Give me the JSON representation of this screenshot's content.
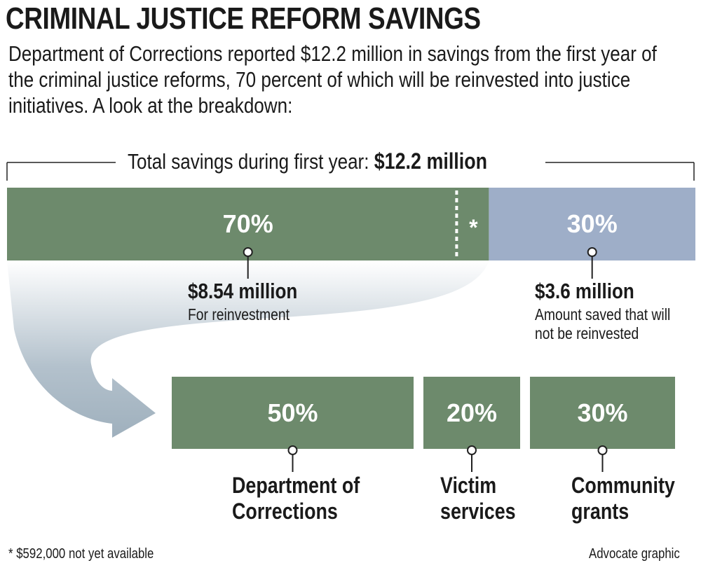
{
  "title": "CRIMINAL JUSTICE REFORM SAVINGS",
  "intro": "Department of Corrections reported $12.2 million in savings from the first year of the criminal justice reforms, 70 percent of which will be reinvested into justice initiatives. A look at the breakdown:",
  "total": {
    "label": "Total savings during first year:",
    "amount": "$12.2 million"
  },
  "split": [
    {
      "share": {
        "value": 70,
        "label": "70%"
      },
      "amount": "$8.54 million",
      "note": "For reinvestment",
      "color": "#6d8a6c"
    },
    {
      "share": {
        "value": 30,
        "label": "30%"
      },
      "amount": "$3.6 million",
      "note": "Amount saved that will not be reinvested",
      "color": "#9eaec8"
    }
  ],
  "unavailable_marker": "*",
  "reinvestment": [
    {
      "share": {
        "value": 50,
        "label": "50%"
      },
      "name": "Department of Corrections",
      "color": "#6d8a6c"
    },
    {
      "share": {
        "value": 20,
        "label": "20%"
      },
      "name": "Victim services",
      "color": "#6d8a6c"
    },
    {
      "share": {
        "value": 30,
        "label": "30%"
      },
      "name": "Community grants",
      "color": "#6d8a6c"
    }
  ],
  "footnote": "* $592,000 not yet available",
  "credit": "Advocate graphic"
}
